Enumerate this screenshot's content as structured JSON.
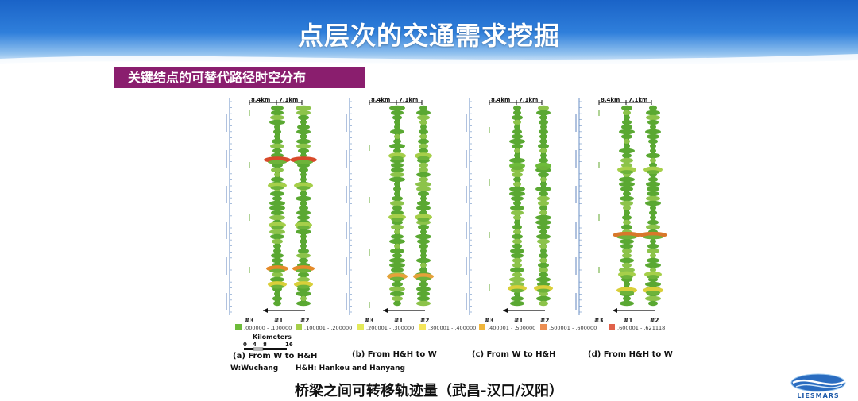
{
  "slide": {
    "title": "点层次的交通需求挖掘",
    "section_label": "关键结点的可替代路径时空分布",
    "caption": "桥梁之间可转移轨迹量（武昌-汉口/汉阳）",
    "logo_text": "LIESMARS"
  },
  "figure": {
    "distance_left": "8.4km",
    "distance_right": "7.1km",
    "panels": [
      {
        "caption": "(a) From W to H&H"
      },
      {
        "caption": "(b) From H&H to W"
      },
      {
        "caption": "(c) From W to H&H"
      },
      {
        "caption": "(d) From H&H to W"
      }
    ],
    "track_labels": [
      "#3",
      "#1",
      "#2"
    ],
    "legend": [
      {
        "label": ".000000 - .100000",
        "color": "#6dbb3a"
      },
      {
        "label": ".100001 - .200000",
        "color": "#a6cf4a"
      },
      {
        "label": ".200001 - .300000",
        "color": "#e4ea5a"
      },
      {
        "label": ".300001 - .400000",
        "color": "#f4e55a"
      },
      {
        "label": ".400001 - .500000",
        "color": "#f0b63c"
      },
      {
        "label": ".500001 - .600000",
        "color": "#ec8e52"
      },
      {
        "label": ".600001 - .621118",
        "color": "#e0614a"
      }
    ],
    "scale": {
      "title": "Kilometers",
      "ticks": [
        "0",
        "4",
        "8",
        "16"
      ]
    },
    "notes": {
      "w": "W:Wuchang",
      "hh": "H&H: Hankou and Hanyang"
    }
  },
  "colors": {
    "header": "#2f7fdb",
    "section": "#8a1e6e",
    "track_green": "#4f9a2a"
  }
}
